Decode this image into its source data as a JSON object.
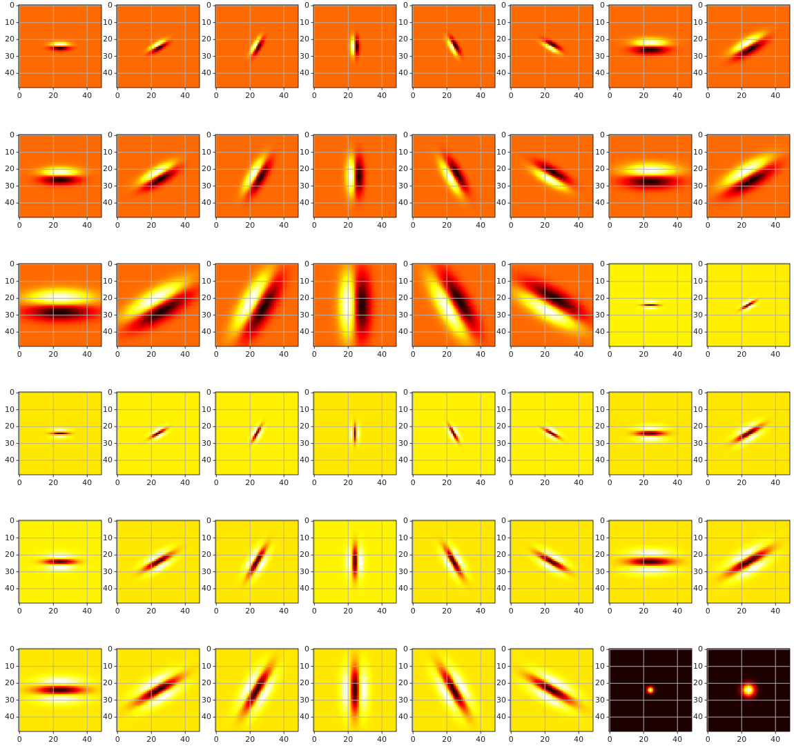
{
  "chart_data": {
    "type": "heatmap",
    "colormap": "hot",
    "grid": true,
    "grid_color": "#b0b0b0",
    "layout": {
      "rows": 6,
      "cols": 8
    },
    "image_size": [
      49,
      49
    ],
    "xlim": [
      -0.5,
      48.5
    ],
    "ylim": [
      48.5,
      -0.5
    ],
    "x_ticks": [
      0,
      20,
      40
    ],
    "y_ticks": [
      0,
      10,
      20,
      30,
      40
    ],
    "x_tick_labels": [
      "0",
      "20",
      "40"
    ],
    "y_tick_labels": [
      "0",
      "10",
      "20",
      "30",
      "40"
    ],
    "center": [
      24,
      24
    ],
    "panels": [
      {
        "kind": "gaussian_1st_derivative",
        "sigma": 1.2,
        "angle": 0
      },
      {
        "kind": "gaussian_1st_derivative",
        "sigma": 1.2,
        "angle": 30
      },
      {
        "kind": "gaussian_1st_derivative",
        "sigma": 1.2,
        "angle": 60
      },
      {
        "kind": "gaussian_1st_derivative",
        "sigma": 1.2,
        "angle": 90
      },
      {
        "kind": "gaussian_1st_derivative",
        "sigma": 1.2,
        "angle": 120
      },
      {
        "kind": "gaussian_1st_derivative",
        "sigma": 1.2,
        "angle": 150
      },
      {
        "kind": "gaussian_1st_derivative",
        "sigma": 2.2,
        "angle": 0
      },
      {
        "kind": "gaussian_1st_derivative",
        "sigma": 2.2,
        "angle": 30
      },
      {
        "kind": "gaussian_1st_derivative",
        "sigma": 2.4,
        "angle": 0
      },
      {
        "kind": "gaussian_1st_derivative",
        "sigma": 2.4,
        "angle": 30
      },
      {
        "kind": "gaussian_1st_derivative",
        "sigma": 2.4,
        "angle": 60
      },
      {
        "kind": "gaussian_1st_derivative",
        "sigma": 2.4,
        "angle": 90
      },
      {
        "kind": "gaussian_1st_derivative",
        "sigma": 2.4,
        "angle": 120
      },
      {
        "kind": "gaussian_1st_derivative",
        "sigma": 2.4,
        "angle": 150
      },
      {
        "kind": "gaussian_1st_derivative",
        "sigma": 3.4,
        "angle": 0
      },
      {
        "kind": "gaussian_1st_derivative",
        "sigma": 3.4,
        "angle": 30
      },
      {
        "kind": "gaussian_1st_derivative",
        "sigma": 4.3,
        "angle": 0
      },
      {
        "kind": "gaussian_1st_derivative",
        "sigma": 4.3,
        "angle": 30
      },
      {
        "kind": "gaussian_1st_derivative",
        "sigma": 4.3,
        "angle": 60
      },
      {
        "kind": "gaussian_1st_derivative",
        "sigma": 4.3,
        "angle": 90
      },
      {
        "kind": "gaussian_1st_derivative",
        "sigma": 4.3,
        "angle": 120
      },
      {
        "kind": "gaussian_1st_derivative",
        "sigma": 4.3,
        "angle": 150
      },
      {
        "kind": "gaussian_2nd_derivative",
        "sigma": 1.0,
        "angle": 0
      },
      {
        "kind": "gaussian_2nd_derivative",
        "sigma": 1.0,
        "angle": 30
      },
      {
        "kind": "gaussian_2nd_derivative",
        "sigma": 1.1,
        "angle": 0
      },
      {
        "kind": "gaussian_2nd_derivative",
        "sigma": 1.1,
        "angle": 30
      },
      {
        "kind": "gaussian_2nd_derivative",
        "sigma": 1.1,
        "angle": 60
      },
      {
        "kind": "gaussian_2nd_derivative",
        "sigma": 1.1,
        "angle": 90
      },
      {
        "kind": "gaussian_2nd_derivative",
        "sigma": 1.1,
        "angle": 120
      },
      {
        "kind": "gaussian_2nd_derivative",
        "sigma": 1.1,
        "angle": 150
      },
      {
        "kind": "gaussian_2nd_derivative",
        "sigma": 1.8,
        "angle": 0
      },
      {
        "kind": "gaussian_2nd_derivative",
        "sigma": 1.8,
        "angle": 30
      },
      {
        "kind": "gaussian_2nd_derivative",
        "sigma": 2.0,
        "angle": 0
      },
      {
        "kind": "gaussian_2nd_derivative",
        "sigma": 2.0,
        "angle": 30
      },
      {
        "kind": "gaussian_2nd_derivative",
        "sigma": 2.0,
        "angle": 60
      },
      {
        "kind": "gaussian_2nd_derivative",
        "sigma": 2.0,
        "angle": 90
      },
      {
        "kind": "gaussian_2nd_derivative",
        "sigma": 2.0,
        "angle": 120
      },
      {
        "kind": "gaussian_2nd_derivative",
        "sigma": 2.0,
        "angle": 150
      },
      {
        "kind": "gaussian_2nd_derivative",
        "sigma": 2.8,
        "angle": 0
      },
      {
        "kind": "gaussian_2nd_derivative",
        "sigma": 2.8,
        "angle": 30
      },
      {
        "kind": "gaussian_2nd_derivative",
        "sigma": 3.0,
        "angle": 0
      },
      {
        "kind": "gaussian_2nd_derivative",
        "sigma": 3.0,
        "angle": 30
      },
      {
        "kind": "gaussian_2nd_derivative",
        "sigma": 3.0,
        "angle": 60
      },
      {
        "kind": "gaussian_2nd_derivative",
        "sigma": 3.0,
        "angle": 90
      },
      {
        "kind": "gaussian_2nd_derivative",
        "sigma": 3.0,
        "angle": 120
      },
      {
        "kind": "gaussian_2nd_derivative",
        "sigma": 3.0,
        "angle": 150
      },
      {
        "kind": "gaussian",
        "sigma": 1.3,
        "angle": 0
      },
      {
        "kind": "gaussian",
        "sigma": 2.6,
        "angle": 0
      }
    ]
  }
}
